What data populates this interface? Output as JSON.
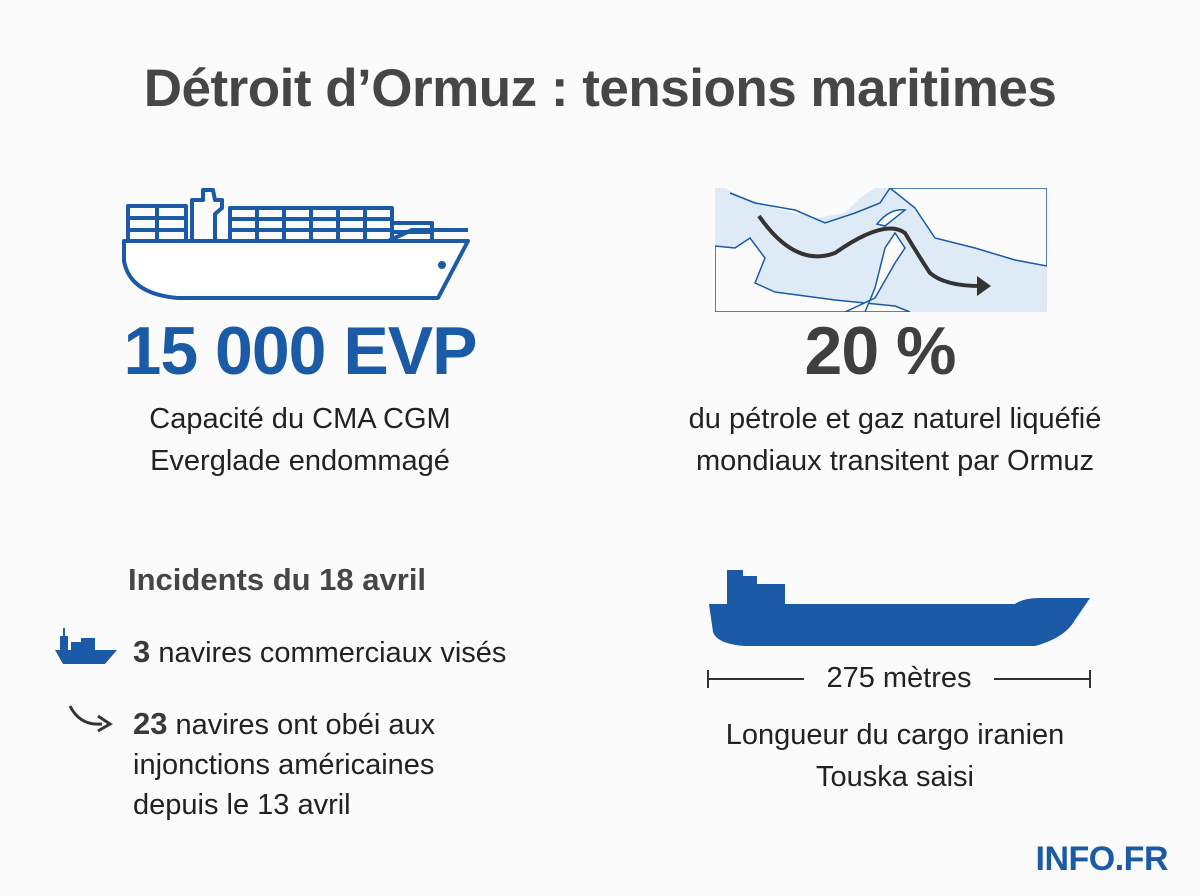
{
  "title": "Détroit d’Ormuz : tensions maritimes",
  "colors": {
    "accent_blue": "#1a5aa6",
    "dark_gray": "#464646",
    "map_water": "#deebf7",
    "map_coast": "#1a5aa6"
  },
  "stat_left": {
    "icon": "container-ship-icon",
    "value": "15 000 EVP",
    "caption_line1": "Capacité du CMA CGM",
    "caption_line2": "Everglade endommagé"
  },
  "stat_right": {
    "icon": "strait-map-with-route-arrow",
    "value": "20 %",
    "caption_line1": "du pétrole et gaz naturel liquéfié",
    "caption_line2": "mondiaux transitent par Ormuz"
  },
  "incidents": {
    "heading": "Incidents du 18 avril",
    "items": [
      {
        "icon": "ship-icon",
        "number": "3",
        "text_line1": "navires commerciaux visés"
      },
      {
        "icon": "curved-arrow-icon",
        "number": "23",
        "text_line1": "navires ont obéi aux",
        "text_line2": "injonctions américaines",
        "text_line3": "depuis le 13 avril"
      }
    ]
  },
  "cargo": {
    "icon": "cargo-ship-silhouette-icon",
    "length": "275 mètres",
    "caption_line1": "Longueur du cargo iranien",
    "caption_line2": "Touska saisi"
  },
  "brand": "INFO.FR"
}
